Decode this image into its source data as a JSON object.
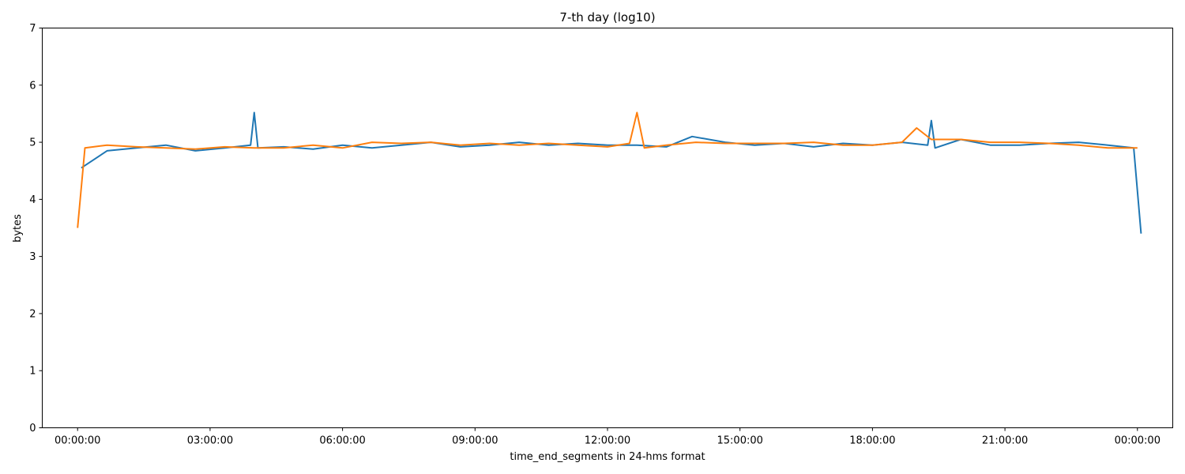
{
  "chart_data": {
    "type": "line",
    "title": "7-th day (log10)",
    "xlabel": "time_end_segments in 24-hms format",
    "ylabel": "bytes",
    "ylim": [
      0,
      7
    ],
    "yticks": [
      "0",
      "1",
      "2",
      "3",
      "4",
      "5",
      "6",
      "7"
    ],
    "xlim": [
      "-00:48:00",
      "24:48:00"
    ],
    "xticks": [
      "00:00:00",
      "03:00:00",
      "06:00:00",
      "09:00:00",
      "12:00:00",
      "15:00:00",
      "18:00:00",
      "21:00:00",
      "00:00:00"
    ],
    "grid": false,
    "legend": "none",
    "series": [
      {
        "color": "#1f77b4",
        "x": [
          "00:05:00",
          "00:40:00",
          "01:20:00",
          "02:00:00",
          "02:40:00",
          "03:20:00",
          "03:55:00",
          "04:00:00",
          "04:05:00",
          "04:40:00",
          "05:20:00",
          "06:00:00",
          "06:40:00",
          "07:20:00",
          "08:00:00",
          "08:40:00",
          "09:20:00",
          "10:00:00",
          "10:40:00",
          "11:20:00",
          "12:00:00",
          "12:40:00",
          "13:20:00",
          "13:55:00",
          "14:40:00",
          "15:20:00",
          "16:00:00",
          "16:40:00",
          "17:20:00",
          "18:00:00",
          "18:40:00",
          "19:15:00",
          "19:20:00",
          "19:25:00",
          "20:00:00",
          "20:40:00",
          "21:20:00",
          "22:00:00",
          "22:40:00",
          "23:20:00",
          "23:55:00",
          "24:05:00"
        ],
        "y": [
          4.55,
          4.85,
          4.9,
          4.95,
          4.85,
          4.9,
          4.95,
          5.52,
          4.9,
          4.92,
          4.88,
          4.95,
          4.9,
          4.95,
          5.0,
          4.92,
          4.95,
          5.0,
          4.95,
          4.98,
          4.95,
          4.95,
          4.92,
          5.1,
          5.0,
          4.95,
          4.98,
          4.92,
          4.98,
          4.95,
          5.0,
          4.95,
          5.38,
          4.9,
          5.05,
          4.95,
          4.95,
          4.98,
          5.0,
          4.95,
          4.9,
          3.4
        ]
      },
      {
        "color": "#ff7f0e",
        "x": [
          "00:00:00",
          "00:10:00",
          "00:40:00",
          "01:20:00",
          "02:00:00",
          "02:40:00",
          "03:20:00",
          "04:00:00",
          "04:40:00",
          "05:20:00",
          "06:00:00",
          "06:40:00",
          "07:20:00",
          "08:00:00",
          "08:40:00",
          "09:20:00",
          "10:00:00",
          "10:40:00",
          "11:20:00",
          "12:00:00",
          "12:30:00",
          "12:40:00",
          "12:50:00",
          "13:20:00",
          "14:00:00",
          "14:40:00",
          "15:20:00",
          "16:00:00",
          "16:40:00",
          "17:20:00",
          "18:00:00",
          "18:40:00",
          "19:00:00",
          "19:20:00",
          "20:00:00",
          "20:40:00",
          "21:20:00",
          "22:00:00",
          "22:40:00",
          "23:20:00",
          "24:00:00"
        ],
        "y": [
          3.5,
          4.9,
          4.95,
          4.92,
          4.9,
          4.88,
          4.92,
          4.9,
          4.9,
          4.95,
          4.9,
          5.0,
          4.98,
          5.0,
          4.95,
          4.98,
          4.95,
          4.98,
          4.95,
          4.92,
          4.98,
          5.52,
          4.9,
          4.95,
          5.0,
          4.98,
          4.98,
          4.98,
          5.0,
          4.95,
          4.95,
          5.0,
          5.25,
          5.05,
          5.05,
          5.0,
          5.0,
          4.98,
          4.95,
          4.9,
          4.9
        ]
      }
    ]
  }
}
